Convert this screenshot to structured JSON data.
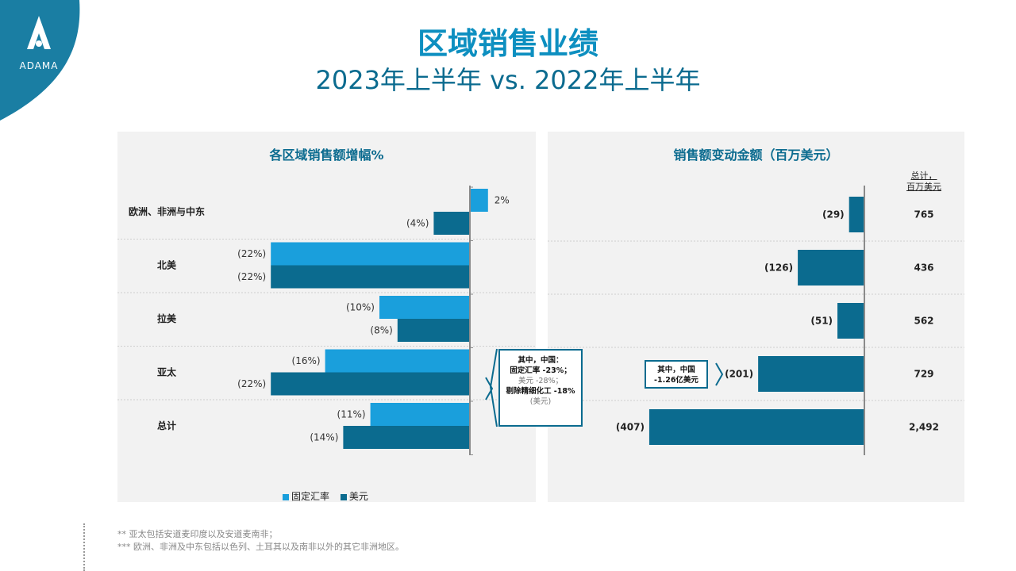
{
  "logo": {
    "text": "ADAMA",
    "color": "#1a7ea3"
  },
  "header": {
    "title": "区域销售业绩",
    "subtitle": "2023年上半年 vs. 2022年上半年"
  },
  "colors": {
    "constant": "#1a9fdc",
    "usd": "#0b6b8f",
    "panel_bg": "#f2f2f2"
  },
  "chart_data": [
    {
      "type": "bar",
      "orientation": "horizontal",
      "title": "各区域销售额增幅%",
      "categories": [
        "欧洲、非洲与中东",
        "北美",
        "拉美",
        "亚太",
        "总计"
      ],
      "series": [
        {
          "name": "固定汇率",
          "values": [
            2,
            -22,
            -10,
            -16,
            -11
          ],
          "labels": [
            "2%",
            "(22%)",
            "(10%)",
            "(16%)",
            "(11%)"
          ]
        },
        {
          "name": "美元",
          "values": [
            -4,
            -22,
            -8,
            -22,
            -14
          ],
          "labels": [
            "(4%)",
            "(22%)",
            "(8%)",
            "(22%)",
            "(14%)"
          ]
        }
      ],
      "legend": "bottom"
    },
    {
      "type": "bar",
      "orientation": "horizontal",
      "title": "销售额变动金额（百万美元）",
      "categories": [
        "欧洲、非洲与中东",
        "北美",
        "拉美",
        "亚太",
        "总计"
      ],
      "values": [
        -29,
        -126,
        -51,
        -201,
        -407
      ],
      "labels": [
        "(29)",
        "(126)",
        "(51)",
        "(201)",
        "(407)"
      ],
      "totals_header": [
        "总计，",
        "百万美元"
      ],
      "totals": [
        "765",
        "436",
        "562",
        "729",
        "2,492"
      ]
    }
  ],
  "legend": {
    "constant": "固定汇率",
    "usd": "美元"
  },
  "callouts": {
    "left": {
      "line1": "其中，中国：",
      "line2": "固定汇率 -23%；",
      "line3": "美元 -28%；",
      "line4": "剔除精细化工 -18%",
      "line5": "(美元)"
    },
    "right": {
      "line1": "其中，中国",
      "line2": "-1.26亿美元"
    }
  },
  "footnotes": [
    "** 亚太包括安道麦印度以及安道麦南非；",
    "*** 欧洲、非洲及中东包括以色列、土耳其以及南非以外的其它非洲地区。"
  ]
}
